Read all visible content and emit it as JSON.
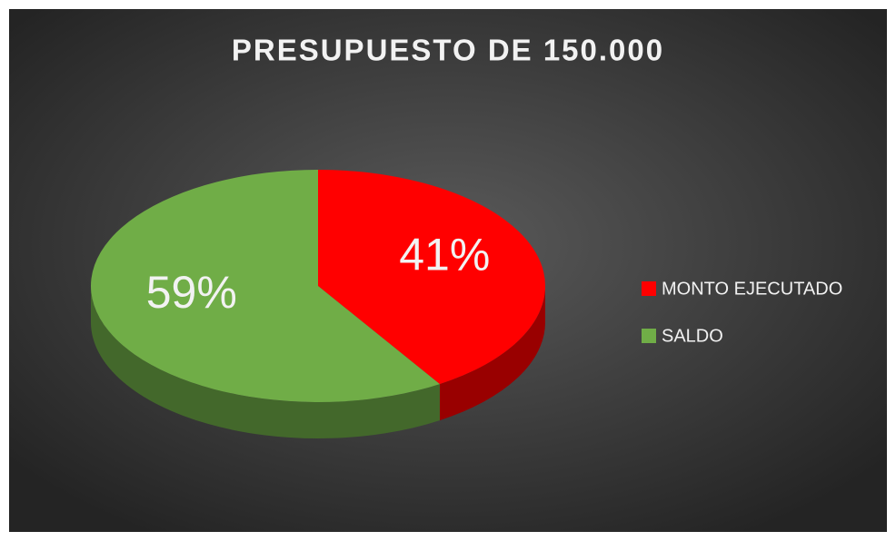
{
  "chart_data": {
    "type": "pie",
    "title": "PRESUPUESTO DE 150.000",
    "categories": [
      "MONTO EJECUTADO",
      "SALDO"
    ],
    "values": [
      41,
      59
    ],
    "value_labels": [
      "41%",
      "59%"
    ],
    "colors": [
      "#ff0000",
      "#70ad47"
    ]
  }
}
